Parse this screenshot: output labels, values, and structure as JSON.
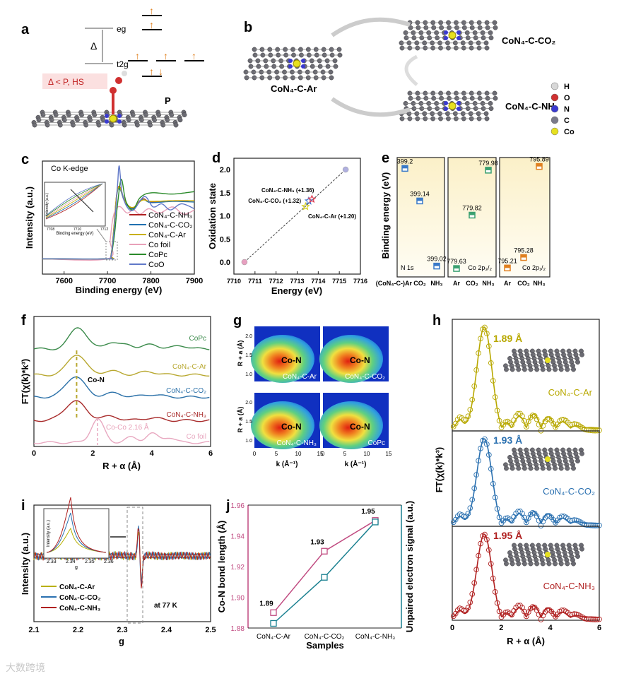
{
  "panel_labels": [
    "a",
    "b",
    "c",
    "d",
    "e",
    "f",
    "g",
    "h",
    "i",
    "j"
  ],
  "watermark": "大数跨境",
  "panel_a": {
    "eg": "eg",
    "t2g": "t2g",
    "delta": "Δ",
    "p": "P",
    "condition": "Δ < P, HS"
  },
  "panel_b": {
    "center": "CoN₄-C-Ar",
    "top": "CoN₄-C-CO₂",
    "bottom": "CoN₄-C-NH₃",
    "legend": [
      {
        "label": "H",
        "color": "#d8d8d8"
      },
      {
        "label": "O",
        "color": "#d03030"
      },
      {
        "label": "N",
        "color": "#3a3ad0"
      },
      {
        "label": "C",
        "color": "#7a7a8a"
      },
      {
        "label": "Co",
        "color": "#e6e020"
      }
    ]
  },
  "chart_data": [
    {
      "id": "c",
      "type": "line",
      "title": "Co K-edge",
      "xlabel": "Binding energy (eV)",
      "ylabel": "Intensity (a.u.)",
      "xlim": [
        7550,
        7900
      ],
      "ylim": [
        -0.15,
        1.7
      ],
      "xticks": [
        7600,
        7700,
        7800,
        7900
      ],
      "legend": "bottom-right",
      "inset": {
        "xlabel": "Binding energy (eV)",
        "ylabel": "Intensity (a.u.)",
        "xticks": [
          "7708",
          "7710",
          "7712"
        ]
      },
      "series": [
        {
          "name": "CoN₄-C-NH₃",
          "color": "#b02020",
          "points": [
            [
              7550,
              0.1
            ],
            [
              7700,
              0.1
            ],
            [
              7708,
              0.16
            ],
            [
              7714,
              0.55
            ],
            [
              7721,
              1.15
            ],
            [
              7728,
              1.28
            ],
            [
              7740,
              1.05
            ],
            [
              7758,
              0.93
            ],
            [
              7780,
              1.08
            ],
            [
              7800,
              1.03
            ],
            [
              7850,
              1.05
            ],
            [
              7900,
              1.05
            ]
          ]
        },
        {
          "name": "CoN₄-C-CO₂",
          "color": "#2070b0",
          "points": [
            [
              7550,
              0.1
            ],
            [
              7700,
              0.1
            ],
            [
              7708,
              0.15
            ],
            [
              7714,
              0.52
            ],
            [
              7721,
              1.12
            ],
            [
              7728,
              1.25
            ],
            [
              7740,
              1.03
            ],
            [
              7758,
              0.92
            ],
            [
              7780,
              1.07
            ],
            [
              7800,
              1.02
            ],
            [
              7850,
              1.04
            ],
            [
              7900,
              1.03
            ]
          ]
        },
        {
          "name": "CoN₄-C-Ar",
          "color": "#c8b000",
          "points": [
            [
              7550,
              0.1
            ],
            [
              7700,
              0.1
            ],
            [
              7708,
              0.17
            ],
            [
              7714,
              0.56
            ],
            [
              7721,
              1.14
            ],
            [
              7728,
              1.27
            ],
            [
              7740,
              1.04
            ],
            [
              7758,
              0.94
            ],
            [
              7780,
              1.06
            ],
            [
              7800,
              1.04
            ],
            [
              7850,
              1.05
            ],
            [
              7900,
              1.05
            ]
          ]
        },
        {
          "name": "Co foil",
          "color": "#e8a0b8",
          "points": [
            [
              7550,
              0.1
            ],
            [
              7700,
              0.1
            ],
            [
              7706,
              0.4
            ],
            [
              7712,
              0.75
            ],
            [
              7720,
              0.92
            ],
            [
              7730,
              0.95
            ],
            [
              7745,
              0.85
            ],
            [
              7760,
              0.9
            ],
            [
              7775,
              0.83
            ],
            [
              7795,
              0.92
            ],
            [
              7820,
              0.85
            ],
            [
              7850,
              0.95
            ],
            [
              7875,
              0.83
            ],
            [
              7900,
              0.9
            ]
          ]
        },
        {
          "name": "CoPc",
          "color": "#2a8a2a",
          "points": [
            [
              7550,
              0.1
            ],
            [
              7700,
              0.1
            ],
            [
              7708,
              0.14
            ],
            [
              7716,
              0.5
            ],
            [
              7724,
              1.05
            ],
            [
              7732,
              1.4
            ],
            [
              7742,
              1.05
            ],
            [
              7758,
              0.9
            ],
            [
              7775,
              1.1
            ],
            [
              7800,
              1.18
            ],
            [
              7850,
              1.16
            ],
            [
              7900,
              1.2
            ]
          ]
        },
        {
          "name": "CoO",
          "color": "#6078c8",
          "points": [
            [
              7550,
              0.1
            ],
            [
              7700,
              0.1
            ],
            [
              7708,
              0.15
            ],
            [
              7716,
              0.65
            ],
            [
              7723,
              1.3
            ],
            [
              7727,
              1.62
            ],
            [
              7733,
              1.2
            ],
            [
              7745,
              0.95
            ],
            [
              7760,
              0.9
            ],
            [
              7785,
              1.12
            ],
            [
              7805,
              0.95
            ],
            [
              7825,
              1.0
            ],
            [
              7845,
              0.9
            ],
            [
              7870,
              1.0
            ],
            [
              7900,
              0.92
            ]
          ]
        }
      ]
    },
    {
      "id": "d",
      "type": "scatter",
      "xlabel": "Energy (eV)",
      "ylabel": "Oxidation state",
      "xlim": [
        7710,
        7716
      ],
      "ylim": [
        -0.25,
        2.25
      ],
      "xticks": [
        7710,
        7711,
        7712,
        7713,
        7714,
        7715,
        7716
      ],
      "yticks": [
        "0.0",
        "0.5",
        "1.0",
        "1.5",
        "2.0"
      ],
      "points": [
        {
          "name": "Co foil",
          "x": 7710.5,
          "y": 0.0,
          "color": "#e7a0c0",
          "marker": "circle"
        },
        {
          "name": "CoN₄-C-Ar",
          "x": 7713.4,
          "y": 1.2,
          "color": "#d8d020",
          "marker": "star",
          "label": "CoN₄-C-Ar (+1.20)"
        },
        {
          "name": "CoN₄-C-CO₂",
          "x": 7713.55,
          "y": 1.32,
          "color": "#4a7ad0",
          "marker": "star",
          "label": "CoN₄-C-CO₂ (+1.32)"
        },
        {
          "name": "CoN₄-C-NH₃",
          "x": 7713.7,
          "y": 1.36,
          "color": "#e03a50",
          "marker": "star",
          "label": "CoN₄-C-NH₃ (+1.36)"
        },
        {
          "name": "CoO",
          "x": 7715.3,
          "y": 2.0,
          "color": "#b0b0e0",
          "marker": "circle"
        }
      ],
      "fit": "linear dashed"
    },
    {
      "id": "e",
      "type": "scatter",
      "ylabel": "Binding energy (eV)",
      "panels": [
        {
          "name": "N 1s",
          "categories": [
            "(CoN₄-C-)Ar",
            "CO₂",
            "NH₃"
          ],
          "values": [
            399.2,
            399.14,
            399.02
          ],
          "labels": [
            "399.2",
            "399.14",
            "399.02"
          ],
          "ylim": [
            399.0,
            399.22
          ],
          "color": "#3a7ac8"
        },
        {
          "name": "Co 2p₃/₂",
          "categories": [
            "Ar",
            "CO₂",
            "NH₃"
          ],
          "values": [
            779.63,
            779.82,
            779.98
          ],
          "labels": [
            "779.63",
            "779.82",
            "779.98"
          ],
          "ylim": [
            779.6,
            780.025
          ],
          "color": "#3aa070"
        },
        {
          "name": "Co 2p₁/₂",
          "categories": [
            "Ar",
            "CO₂",
            "NH₃"
          ],
          "values": [
            795.21,
            795.28,
            795.89
          ],
          "labels": [
            "795.21",
            "795.28",
            "795.89"
          ],
          "ylim": [
            795.15,
            795.95
          ],
          "color": "#e08020"
        }
      ]
    },
    {
      "id": "f",
      "type": "line",
      "xlabel": "R + α (Å)",
      "ylabel": "FT(χ(k)*k³)",
      "xlim": [
        0,
        6
      ],
      "ylim": [
        0,
        10
      ],
      "xticks": [
        0,
        2,
        4,
        6
      ],
      "annotations": [
        "Co-N",
        "Co-Co 2.16 Å"
      ],
      "series": [
        {
          "name": "CoPc",
          "color": "#3a8a4a",
          "offset": 7.5,
          "peaks": [
            [
              1.5,
              1.7,
              0.28
            ],
            [
              2.6,
              0.5,
              0.25
            ],
            [
              3.2,
              0.35,
              0.2
            ],
            [
              4.0,
              0.35,
              0.25
            ],
            [
              5.0,
              0.25,
              0.25
            ]
          ]
        },
        {
          "name": "CoN₄-C-Ar",
          "color": "#b8a830",
          "offset": 5.5,
          "peaks": [
            [
              1.45,
              1.6,
              0.3
            ],
            [
              2.6,
              0.3,
              0.3
            ],
            [
              3.9,
              0.25,
              0.3
            ]
          ]
        },
        {
          "name": "CoN₄-C-CO₂",
          "color": "#2a70a8",
          "offset": 3.8,
          "peaks": [
            [
              1.4,
              1.6,
              0.32
            ],
            [
              2.7,
              0.3,
              0.3
            ],
            [
              4.0,
              0.2,
              0.3
            ]
          ]
        },
        {
          "name": "CoN₄-C-NH₃",
          "color": "#a82a2a",
          "offset": 2.0,
          "peaks": [
            [
              1.4,
              1.5,
              0.35
            ],
            [
              2.6,
              0.3,
              0.3
            ],
            [
              4.0,
              0.2,
              0.3
            ]
          ]
        },
        {
          "name": "Co foil",
          "color": "#e8a8c0",
          "offset": 0.3,
          "peaks": [
            [
              2.16,
              1.8,
              0.22
            ],
            [
              3.3,
              0.4,
              0.2
            ],
            [
              4.0,
              0.7,
              0.2
            ],
            [
              4.6,
              0.4,
              0.2
            ]
          ]
        }
      ]
    },
    {
      "id": "g",
      "type": "heatmap",
      "xlabel": "k (Å⁻¹)",
      "ylabel": "R + a (Å)",
      "xticks": [
        "0",
        "5",
        "10",
        "15"
      ],
      "yticks": [
        "1.0",
        "1.5",
        "2.0"
      ],
      "maps": [
        {
          "name": "CoN₄-C-Ar",
          "feature": "Co-N"
        },
        {
          "name": "CoN₄-C-CO₂",
          "feature": "Co-N"
        },
        {
          "name": "CoN₄-C-NH₃",
          "feature": "Co-N"
        },
        {
          "name": "CoPc",
          "feature": "Co-N"
        }
      ]
    },
    {
      "id": "h",
      "type": "line",
      "xlabel": "R + α (Å)",
      "ylabel": "FT(χ(k)*k³)",
      "xlim": [
        0,
        6
      ],
      "xticks": [
        0,
        2,
        4,
        6
      ],
      "panels": [
        {
          "name": "CoN₄-C-Ar",
          "bond": "1.89 Å",
          "color": "#b8a800"
        },
        {
          "name": "CoN₄-C-CO₂",
          "bond": "1.93 Å",
          "color": "#2a70b0"
        },
        {
          "name": "CoN₄-C-NH₃",
          "bond": "1.95 Å",
          "color": "#b02020"
        }
      ]
    },
    {
      "id": "i",
      "type": "line",
      "xlabel": "g",
      "ylabel": "Intensity (a.u.)",
      "xlim": [
        2.1,
        2.5
      ],
      "xticks": [
        "2.1",
        "2.2",
        "2.3",
        "2.4",
        "2.5"
      ],
      "note": "at 77 K",
      "inset": {
        "xlabel": "g",
        "ylabel": "Intensity (a.u.)",
        "xticks": [
          "2.33",
          "2.34",
          "2.35",
          "2.36"
        ]
      },
      "series": [
        {
          "name": "CoN₄-C-Ar",
          "color": "#b8b000",
          "amp": 0.85
        },
        {
          "name": "CoN₄-C-CO₂",
          "color": "#2a70b0",
          "amp": 0.92
        },
        {
          "name": "CoN₄-C-NH₃",
          "color": "#b02020",
          "amp": 1.0
        }
      ],
      "signal_g": 2.34
    },
    {
      "id": "j",
      "type": "line",
      "xlabel": "Samples",
      "ylabel": "Co-N bond length (Å)",
      "ylabel_right": "Unpaired electron signal (a.u.)",
      "categories": [
        "CoN₄-C-Ar",
        "CoN₄-C-CO₂",
        "CoN₄-C-NH₃"
      ],
      "ylim": [
        1.88,
        1.96
      ],
      "yticks": [
        "1.88",
        "1.90",
        "1.92",
        "1.94",
        "1.96"
      ],
      "series": [
        {
          "name": "Co-N bond length",
          "color": "#c04a80",
          "values": [
            1.89,
            1.93,
            1.95
          ],
          "labels": [
            "1.89",
            "1.93",
            "1.95"
          ]
        },
        {
          "name": "Unpaired electron signal",
          "color": "#1a8090",
          "values": [
            1.883,
            1.913,
            1.949
          ]
        }
      ]
    }
  ]
}
